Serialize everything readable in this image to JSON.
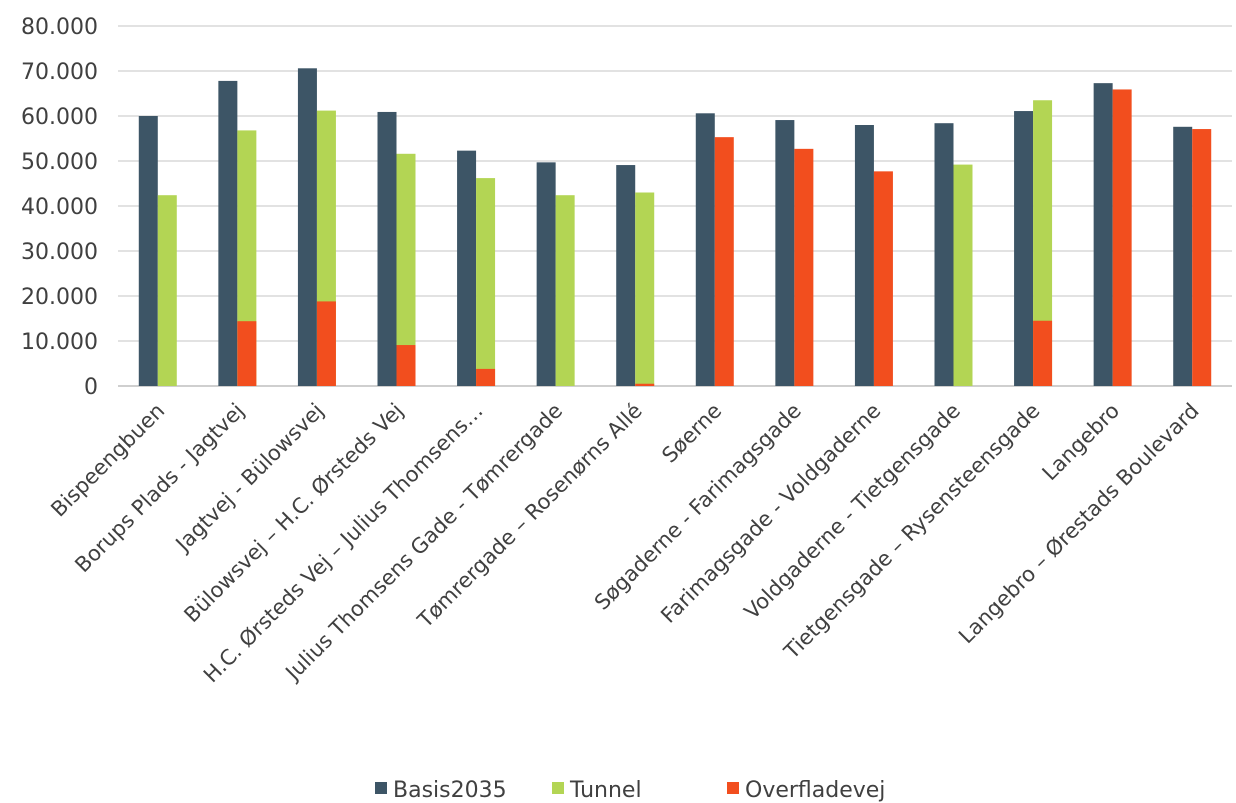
{
  "chart_data": {
    "type": "bar",
    "title": "",
    "xlabel": "",
    "ylabel": "",
    "ylim": [
      0,
      80000
    ],
    "yticks": [
      0,
      10000,
      20000,
      30000,
      40000,
      50000,
      60000,
      70000,
      80000
    ],
    "ytick_labels": [
      "0",
      "10.000",
      "20.000",
      "30.000",
      "40.000",
      "50.000",
      "60.000",
      "70.000",
      "80.000"
    ],
    "grid": true,
    "legend_position": "bottom",
    "categories": [
      "Bispeengbuen",
      "Borups Plads - Jagtvej",
      "Jagtvej - Bülowsvej",
      "Bülowsvej – H.C. Ørsteds Vej",
      "H.C. Ørsteds Vej – Julius Thomsens…",
      "Julius Thomsens Gade - Tømrergade",
      "Tømrergade – Rosenørns Allé",
      "Søerne",
      "Søgaderne - Farimagsgade",
      "Farimagsgade - Voldgaderne",
      "Voldgaderne - Tietgensgade",
      "Tietgensgade – Rysensteensgade",
      "Langebro",
      "Langebro – Ørestads Boulevard"
    ],
    "series": [
      {
        "name": "Basis2035",
        "color": "#3d5566",
        "values": [
          60000,
          67800,
          70600,
          60900,
          52300,
          49700,
          49100,
          60600,
          59100,
          58000,
          58400,
          61100,
          67300,
          57600
        ]
      },
      {
        "name": "Tunnel",
        "color": "#b3d554",
        "values": [
          42400,
          56800,
          61200,
          51600,
          46200,
          42400,
          43000,
          null,
          null,
          null,
          49200,
          63500,
          null,
          null
        ]
      },
      {
        "name": "Overfladevej",
        "color": "#f24e1e",
        "values": [
          null,
          14400,
          18800,
          9100,
          3800,
          null,
          500,
          55300,
          52700,
          47700,
          null,
          14500,
          65900,
          57100
        ]
      }
    ]
  }
}
